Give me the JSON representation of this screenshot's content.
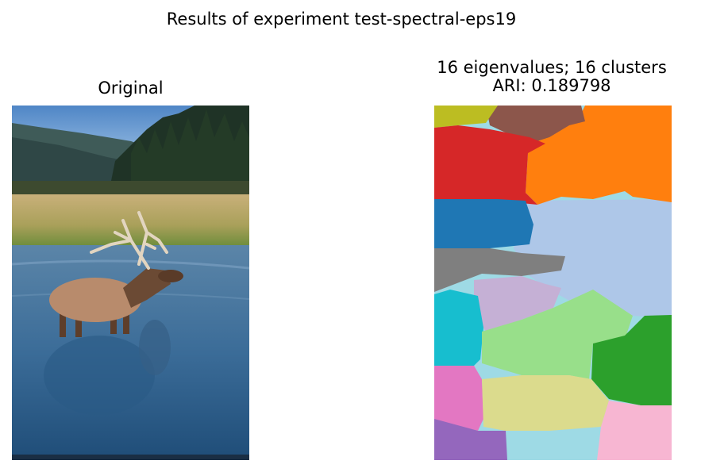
{
  "figure": {
    "suptitle": "Results of experiment test-spectral-eps19",
    "left_panel": {
      "title": "Original",
      "image": "photo of an elk standing in a river with forested hills behind"
    },
    "right_panel": {
      "title_line1": "16 eigenvalues; 16 clusters",
      "title_line2": "ARI: 0.189798",
      "image": "segmentation map with 16 colored clusters"
    }
  },
  "colors": {
    "olive": "#bcbd22",
    "brown": "#8c564b",
    "orange": "#ff7f0e",
    "red": "#d62728",
    "blue": "#1f77b4",
    "lightblue": "#aec7e8",
    "gray": "#7f7f7f",
    "lavender": "#c5b0d5",
    "cyan": "#17becf",
    "lightgreen": "#98df8a",
    "green": "#2ca02c",
    "pink": "#e377c2",
    "khaki": "#dbdb8d",
    "purple": "#9467bd",
    "lightcyan": "#9edae5",
    "lightpink": "#f7b6d2"
  }
}
